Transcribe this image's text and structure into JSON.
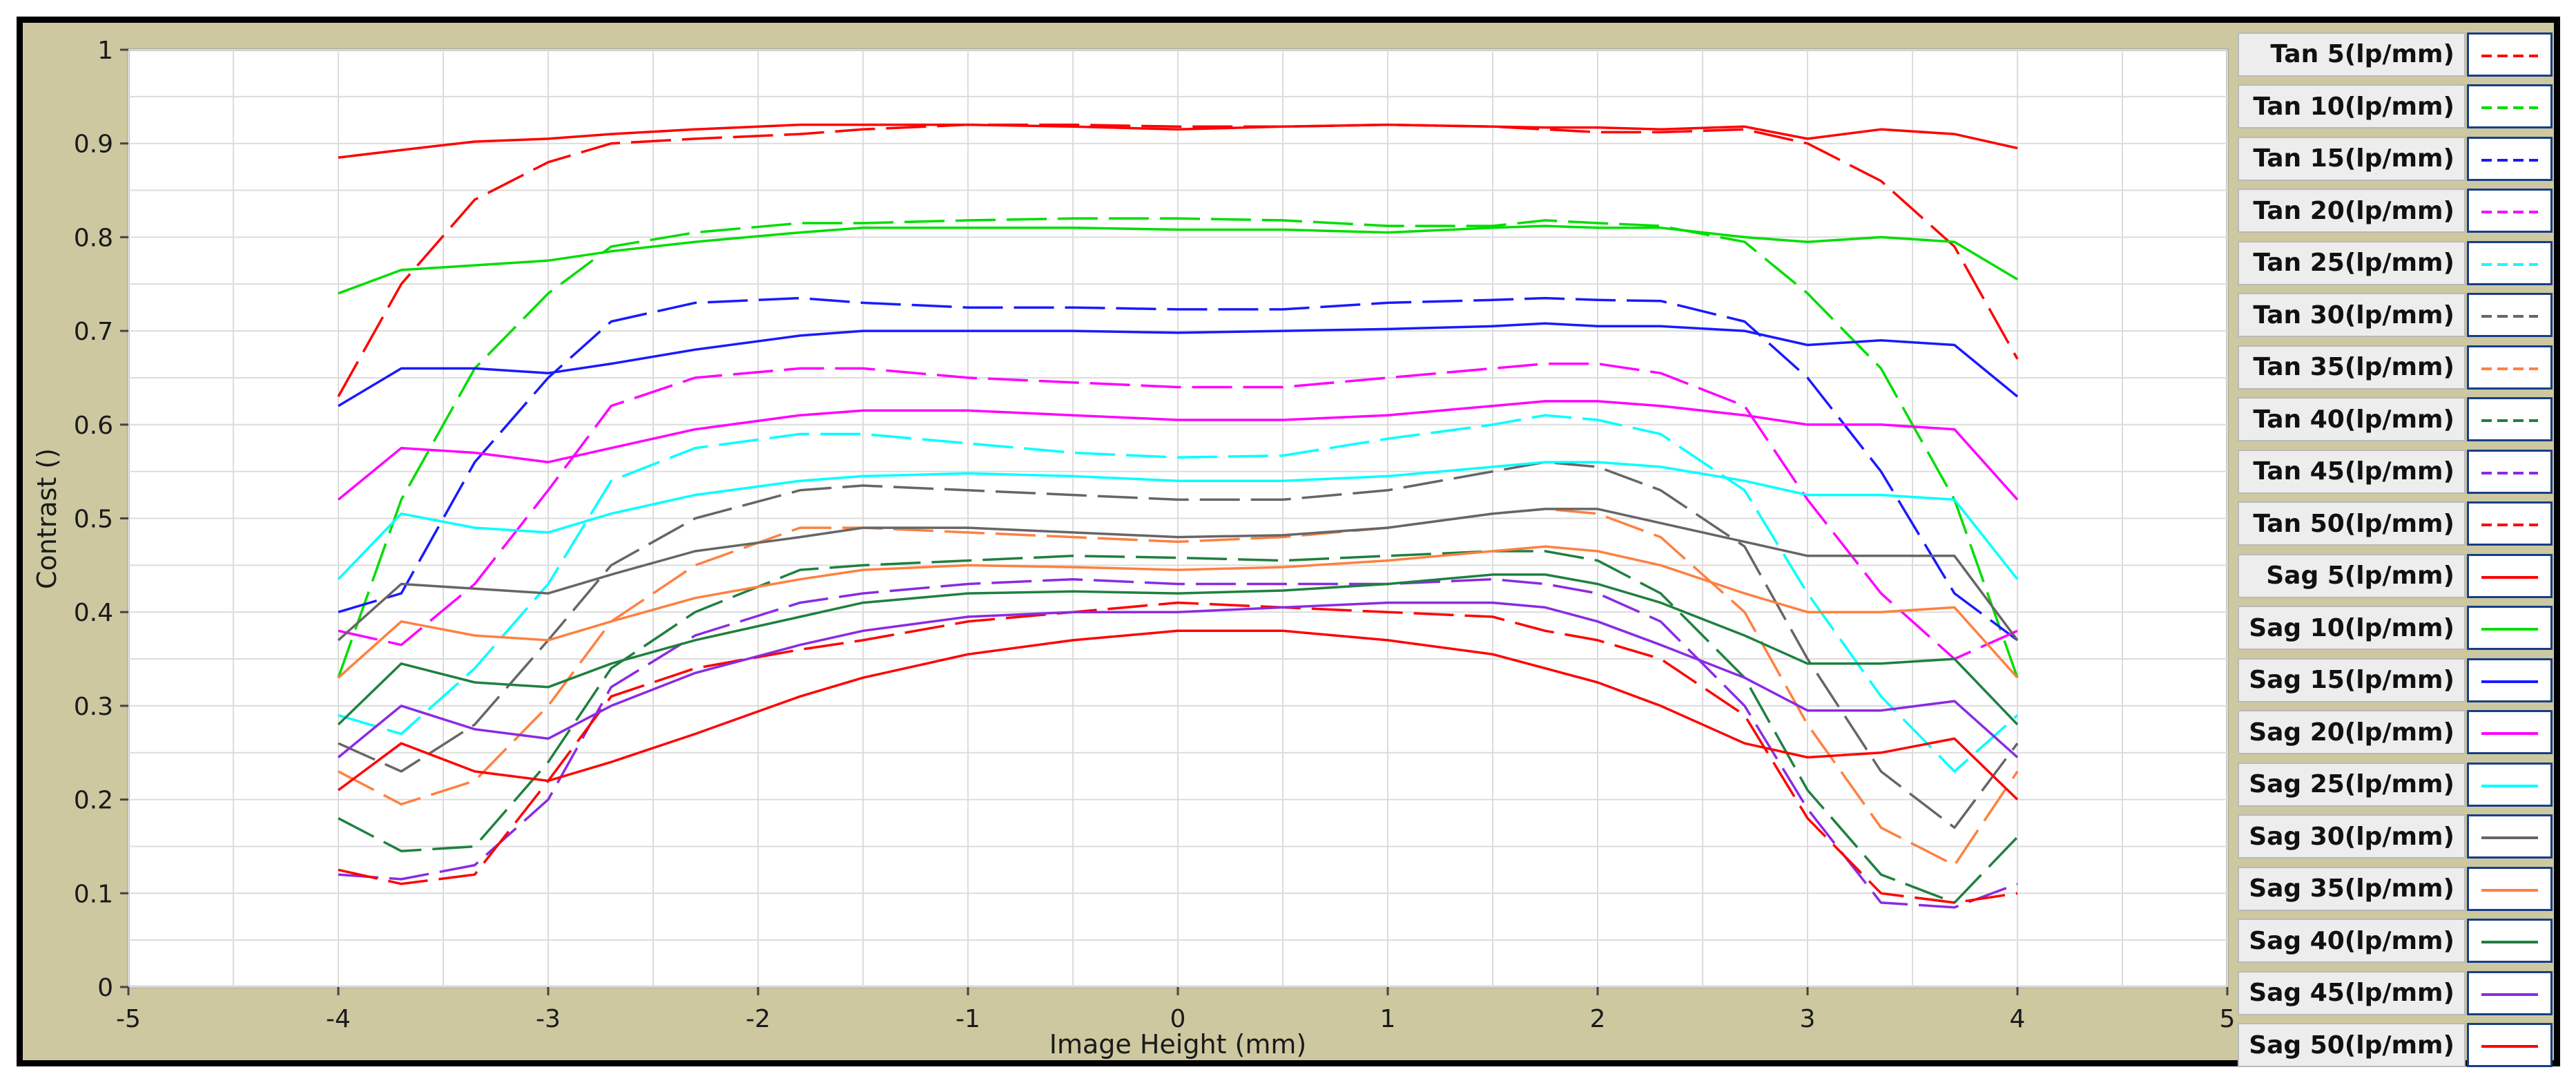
{
  "chart_data": {
    "type": "line",
    "xlabel": "Image Height (mm)",
    "ylabel": "Contrast ()",
    "xlim": [
      -5,
      5
    ],
    "ylim": [
      0,
      1
    ],
    "x_ticks": [
      "-5",
      "-4",
      "-3",
      "-2",
      "-1",
      "0",
      "1",
      "2",
      "3",
      "4",
      "5"
    ],
    "y_ticks": [
      "0",
      "0.1",
      "0.2",
      "0.3",
      "0.4",
      "0.5",
      "0.6",
      "0.7",
      "0.8",
      "0.9",
      "1"
    ],
    "grid": true,
    "legend_position": "right",
    "x": [
      -4,
      -3.7,
      -3.35,
      -3,
      -2.7,
      -2.3,
      -1.8,
      -1.5,
      -1,
      -0.5,
      0,
      0.5,
      1,
      1.5,
      1.75,
      2,
      2.3,
      2.7,
      3,
      3.35,
      3.7,
      4
    ],
    "series": [
      {
        "name": "Tan 5(lp/mm)",
        "color": "#ff0000",
        "dash": true,
        "values": [
          0.63,
          0.75,
          0.84,
          0.88,
          0.9,
          0.905,
          0.91,
          0.915,
          0.92,
          0.92,
          0.918,
          0.918,
          0.92,
          0.918,
          0.915,
          0.912,
          0.912,
          0.915,
          0.9,
          0.86,
          0.79,
          0.67
        ]
      },
      {
        "name": "Tan 10(lp/mm)",
        "color": "#00dd00",
        "dash": true,
        "values": [
          0.33,
          0.52,
          0.66,
          0.74,
          0.79,
          0.805,
          0.815,
          0.815,
          0.818,
          0.82,
          0.82,
          0.818,
          0.812,
          0.812,
          0.818,
          0.815,
          0.812,
          0.795,
          0.74,
          0.66,
          0.52,
          0.33
        ]
      },
      {
        "name": "Tan 15(lp/mm)",
        "color": "#1a1aff",
        "dash": true,
        "values": [
          0.4,
          0.42,
          0.56,
          0.65,
          0.71,
          0.73,
          0.735,
          0.73,
          0.725,
          0.725,
          0.723,
          0.723,
          0.73,
          0.733,
          0.735,
          0.733,
          0.732,
          0.71,
          0.65,
          0.55,
          0.42,
          0.37
        ]
      },
      {
        "name": "Tan 20(lp/mm)",
        "color": "#ff00ff",
        "dash": true,
        "values": [
          0.38,
          0.365,
          0.43,
          0.53,
          0.62,
          0.65,
          0.66,
          0.66,
          0.65,
          0.645,
          0.64,
          0.64,
          0.65,
          0.66,
          0.665,
          0.665,
          0.655,
          0.62,
          0.52,
          0.42,
          0.35,
          0.38
        ]
      },
      {
        "name": "Tan 25(lp/mm)",
        "color": "#00ffff",
        "dash": true,
        "values": [
          0.29,
          0.27,
          0.34,
          0.43,
          0.54,
          0.575,
          0.59,
          0.59,
          0.58,
          0.57,
          0.565,
          0.567,
          0.585,
          0.6,
          0.61,
          0.605,
          0.59,
          0.53,
          0.42,
          0.31,
          0.23,
          0.29
        ]
      },
      {
        "name": "Tan 30(lp/mm)",
        "color": "#666666",
        "dash": true,
        "values": [
          0.26,
          0.23,
          0.28,
          0.37,
          0.45,
          0.5,
          0.53,
          0.535,
          0.53,
          0.525,
          0.52,
          0.52,
          0.53,
          0.55,
          0.56,
          0.555,
          0.53,
          0.47,
          0.35,
          0.23,
          0.17,
          0.26
        ]
      },
      {
        "name": "Tan 35(lp/mm)",
        "color": "#ff8040",
        "dash": true,
        "values": [
          0.23,
          0.195,
          0.22,
          0.3,
          0.39,
          0.45,
          0.49,
          0.49,
          0.485,
          0.48,
          0.475,
          0.48,
          0.49,
          0.505,
          0.51,
          0.505,
          0.48,
          0.4,
          0.28,
          0.17,
          0.13,
          0.23
        ]
      },
      {
        "name": "Tan 40(lp/mm)",
        "color": "#1f8040",
        "dash": true,
        "values": [
          0.18,
          0.145,
          0.15,
          0.24,
          0.34,
          0.4,
          0.445,
          0.45,
          0.455,
          0.46,
          0.458,
          0.455,
          0.46,
          0.465,
          0.465,
          0.455,
          0.42,
          0.33,
          0.21,
          0.12,
          0.09,
          0.16
        ]
      },
      {
        "name": "Tan 45(lp/mm)",
        "color": "#8a2be2",
        "dash": true,
        "values": [
          0.12,
          0.115,
          0.13,
          0.2,
          0.32,
          0.375,
          0.41,
          0.42,
          0.43,
          0.435,
          0.43,
          0.43,
          0.43,
          0.435,
          0.43,
          0.42,
          0.39,
          0.3,
          0.19,
          0.09,
          0.085,
          0.11
        ]
      },
      {
        "name": "Tan 50(lp/mm)",
        "color": "#ff0000",
        "dash": true,
        "values": [
          0.125,
          0.11,
          0.12,
          0.22,
          0.31,
          0.34,
          0.36,
          0.37,
          0.39,
          0.4,
          0.41,
          0.405,
          0.4,
          0.395,
          0.38,
          0.37,
          0.35,
          0.29,
          0.18,
          0.1,
          0.09,
          0.1
        ]
      },
      {
        "name": "Sag 5(lp/mm)",
        "color": "#ff0000",
        "dash": false,
        "values": [
          0.885,
          0.893,
          0.902,
          0.905,
          0.91,
          0.915,
          0.92,
          0.92,
          0.92,
          0.918,
          0.915,
          0.918,
          0.92,
          0.918,
          0.917,
          0.917,
          0.915,
          0.918,
          0.905,
          0.915,
          0.91,
          0.895
        ]
      },
      {
        "name": "Sag 10(lp/mm)",
        "color": "#00dd00",
        "dash": false,
        "values": [
          0.74,
          0.765,
          0.77,
          0.775,
          0.785,
          0.795,
          0.805,
          0.81,
          0.81,
          0.81,
          0.808,
          0.808,
          0.805,
          0.81,
          0.812,
          0.81,
          0.81,
          0.8,
          0.795,
          0.8,
          0.795,
          0.755
        ]
      },
      {
        "name": "Sag 15(lp/mm)",
        "color": "#1a1aff",
        "dash": false,
        "values": [
          0.62,
          0.66,
          0.66,
          0.655,
          0.665,
          0.68,
          0.695,
          0.7,
          0.7,
          0.7,
          0.698,
          0.7,
          0.702,
          0.705,
          0.708,
          0.705,
          0.705,
          0.7,
          0.685,
          0.69,
          0.685,
          0.63
        ]
      },
      {
        "name": "Sag 20(lp/mm)",
        "color": "#ff00ff",
        "dash": false,
        "values": [
          0.52,
          0.575,
          0.57,
          0.56,
          0.575,
          0.595,
          0.61,
          0.615,
          0.615,
          0.61,
          0.605,
          0.605,
          0.61,
          0.62,
          0.625,
          0.625,
          0.62,
          0.61,
          0.6,
          0.6,
          0.595,
          0.52
        ]
      },
      {
        "name": "Sag 25(lp/mm)",
        "color": "#00ffff",
        "dash": false,
        "values": [
          0.435,
          0.505,
          0.49,
          0.485,
          0.505,
          0.525,
          0.54,
          0.545,
          0.548,
          0.545,
          0.54,
          0.54,
          0.545,
          0.555,
          0.56,
          0.56,
          0.555,
          0.54,
          0.525,
          0.525,
          0.52,
          0.435
        ]
      },
      {
        "name": "Sag 30(lp/mm)",
        "color": "#666666",
        "dash": false,
        "values": [
          0.37,
          0.43,
          0.425,
          0.42,
          0.44,
          0.465,
          0.48,
          0.49,
          0.49,
          0.485,
          0.48,
          0.482,
          0.49,
          0.505,
          0.51,
          0.51,
          0.495,
          0.475,
          0.46,
          0.46,
          0.46,
          0.37
        ]
      },
      {
        "name": "Sag 35(lp/mm)",
        "color": "#ff8040",
        "dash": false,
        "values": [
          0.33,
          0.39,
          0.375,
          0.37,
          0.39,
          0.415,
          0.435,
          0.445,
          0.45,
          0.448,
          0.445,
          0.448,
          0.455,
          0.465,
          0.47,
          0.465,
          0.45,
          0.42,
          0.4,
          0.4,
          0.405,
          0.33
        ]
      },
      {
        "name": "Sag 40(lp/mm)",
        "color": "#1f8040",
        "dash": false,
        "values": [
          0.28,
          0.345,
          0.325,
          0.32,
          0.345,
          0.37,
          0.395,
          0.41,
          0.42,
          0.422,
          0.42,
          0.423,
          0.43,
          0.44,
          0.44,
          0.43,
          0.41,
          0.375,
          0.345,
          0.345,
          0.35,
          0.28
        ]
      },
      {
        "name": "Sag 45(lp/mm)",
        "color": "#8a2be2",
        "dash": false,
        "values": [
          0.245,
          0.3,
          0.275,
          0.265,
          0.3,
          0.335,
          0.365,
          0.38,
          0.395,
          0.4,
          0.4,
          0.405,
          0.41,
          0.41,
          0.405,
          0.39,
          0.365,
          0.33,
          0.295,
          0.295,
          0.305,
          0.245
        ]
      },
      {
        "name": "Sag 50(lp/mm)",
        "color": "#ff0000",
        "dash": false,
        "values": [
          0.21,
          0.26,
          0.23,
          0.22,
          0.24,
          0.27,
          0.31,
          0.33,
          0.355,
          0.37,
          0.38,
          0.38,
          0.37,
          0.355,
          0.34,
          0.325,
          0.3,
          0.26,
          0.245,
          0.25,
          0.265,
          0.2
        ]
      }
    ]
  }
}
